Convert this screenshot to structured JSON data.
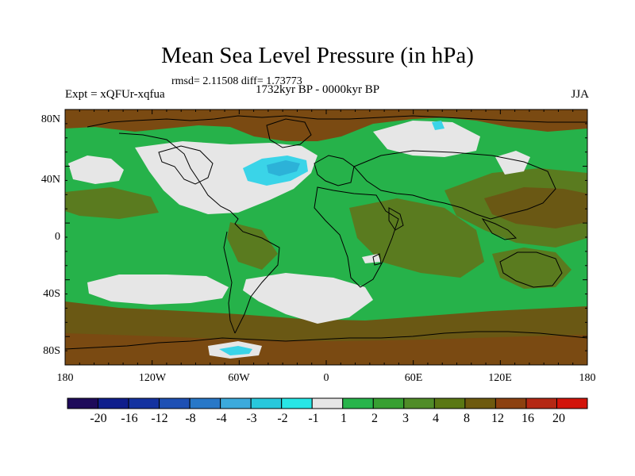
{
  "title": "Mean Sea Level Pressure (in hPa)",
  "stats": "rmsd= 2.11508 diff= 1.73773",
  "left_label": "Expt = xQFUr-xqfua",
  "center_label": "1732kyr BP - 0000kyr BP",
  "right_label": "JJA",
  "x_ticks": [
    "180",
    "120W",
    "60W",
    "0",
    "60E",
    "120E",
    "180"
  ],
  "y_ticks": [
    "80N",
    "40N",
    "0",
    "40S",
    "80S"
  ],
  "colorbar": {
    "labels": [
      "-20",
      "-16",
      "-12",
      "-8",
      "-4",
      "-3",
      "-2",
      "-1",
      "1",
      "2",
      "3",
      "4",
      "8",
      "12",
      "16",
      "20"
    ],
    "colors": [
      "#1e0a5a",
      "#0f1e8c",
      "#1432a0",
      "#1e50b4",
      "#2878c8",
      "#3caadc",
      "#28c8dc",
      "#28e6e6",
      "#e6e6e6",
      "#28b44b",
      "#37a032",
      "#508c28",
      "#5a7814",
      "#6e5a0f",
      "#8c4110",
      "#b42814",
      "#d2140a"
    ]
  },
  "map_colors": {
    "ocean_default": "#26b24a",
    "near_zero": "#e6e6e6",
    "negative": "#3ad4e8",
    "negative_strong": "#2cb2d8",
    "land_high": "#5a7b1f",
    "land_higher": "#6a5814",
    "polar_high": "#7a4a12"
  }
}
